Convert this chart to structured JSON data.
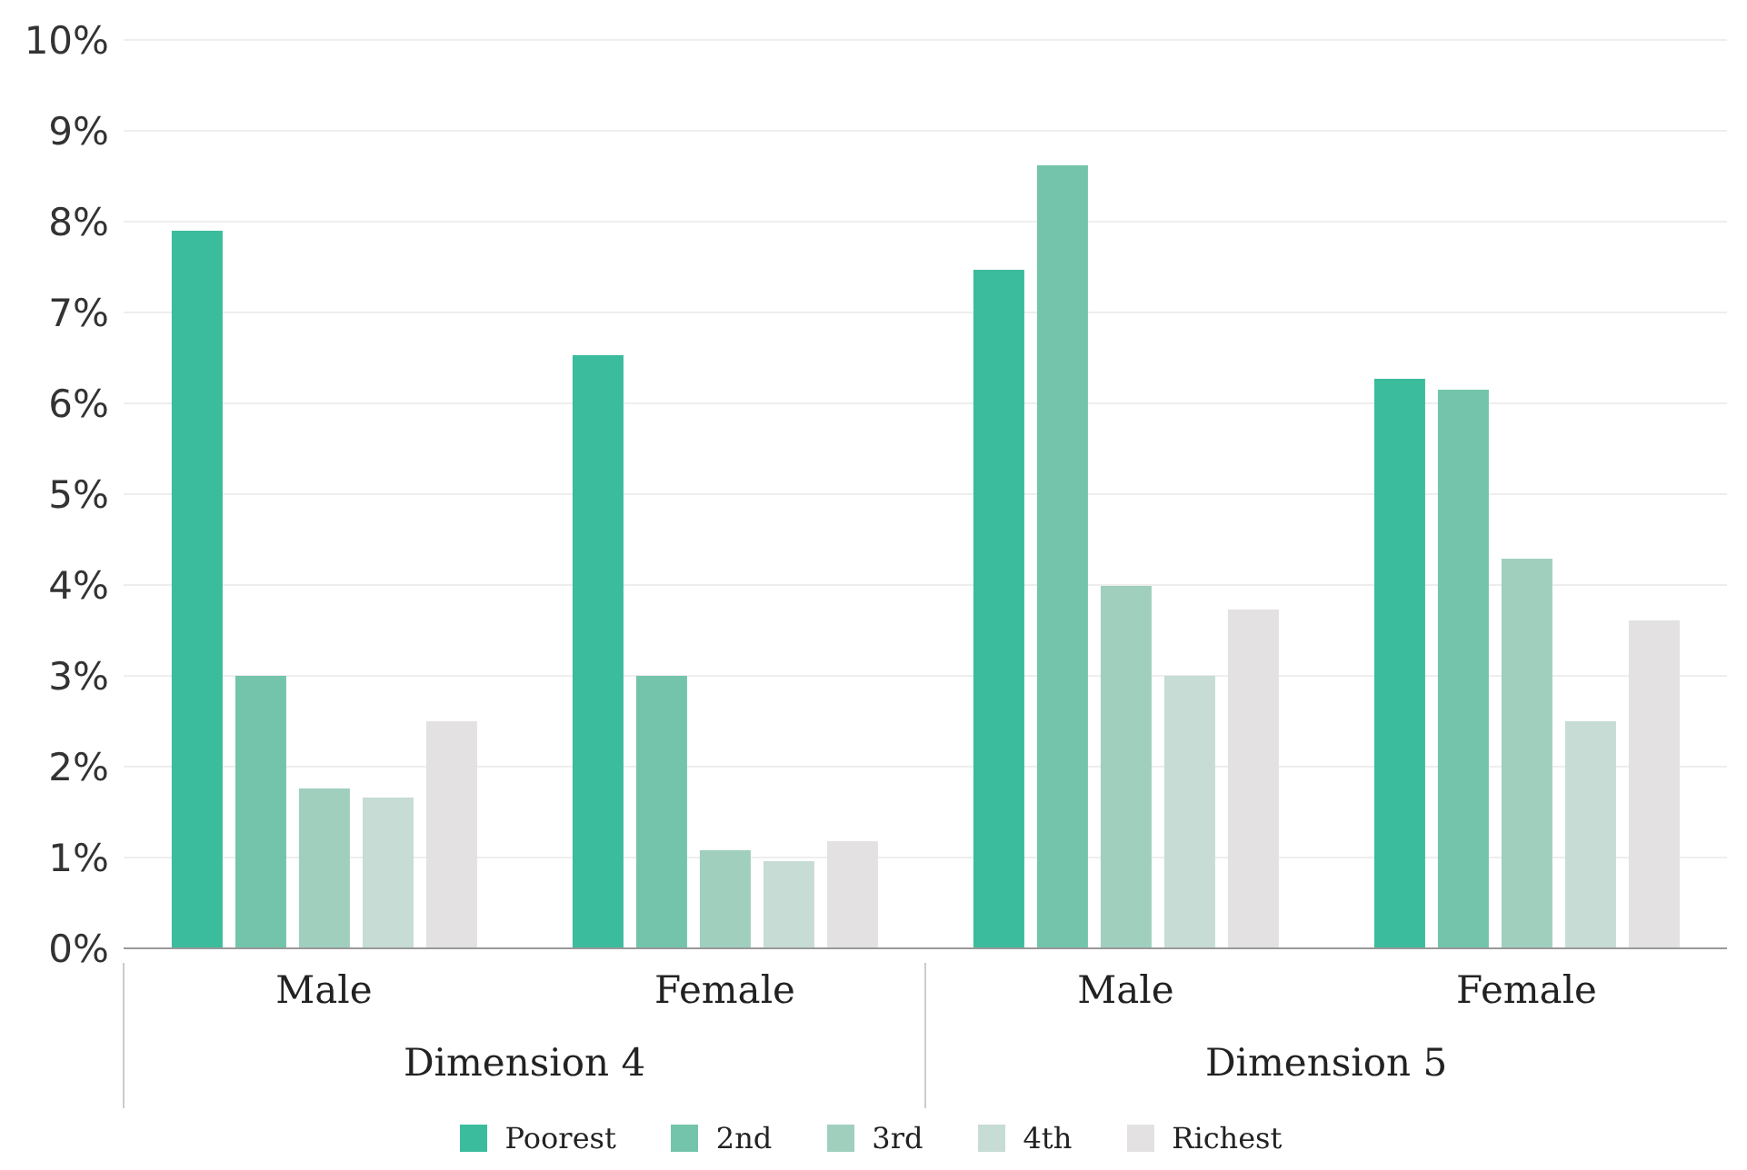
{
  "chart_data": {
    "type": "bar",
    "categories": [
      "Male",
      "Female",
      "Male",
      "Female"
    ],
    "series": [
      {
        "name": "Poorest",
        "color": "#3bbc9c",
        "values": [
          7.9,
          6.53,
          7.47,
          6.27
        ]
      },
      {
        "name": "2nd",
        "color": "#74c4ab",
        "values": [
          3.0,
          3.0,
          8.62,
          6.15
        ]
      },
      {
        "name": "3rd",
        "color": "#a0cfbe",
        "values": [
          1.76,
          1.08,
          3.99,
          4.29
        ]
      },
      {
        "name": "4th",
        "color": "#c6dcd4",
        "values": [
          1.66,
          0.96,
          3.0,
          2.5
        ]
      },
      {
        "name": "Richest",
        "color": "#e3e1e2",
        "values": [
          2.5,
          1.18,
          3.73,
          3.61
        ]
      }
    ],
    "annotations": [
      "Dimension 4",
      "Dimension 5"
    ],
    "ylim": [
      0,
      10
    ],
    "yticks": [
      {
        "value": 0,
        "label": "0%"
      },
      {
        "value": 1,
        "label": "1%"
      },
      {
        "value": 2,
        "label": "2%"
      },
      {
        "value": 3,
        "label": "3%"
      },
      {
        "value": 4,
        "label": "4%"
      },
      {
        "value": 5,
        "label": "5%"
      },
      {
        "value": 6,
        "label": "6%"
      },
      {
        "value": 7,
        "label": "7%"
      },
      {
        "value": 8,
        "label": "8%"
      },
      {
        "value": 9,
        "label": "9%"
      },
      {
        "value": 10,
        "label": "10%"
      }
    ],
    "grid": "y",
    "legend": "bottom"
  }
}
